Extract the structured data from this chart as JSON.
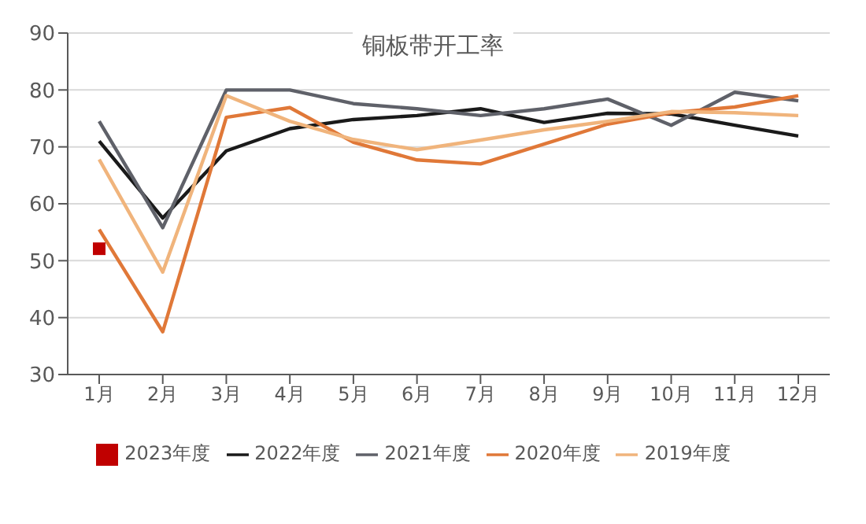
{
  "chart_data": {
    "type": "line",
    "title": "铜板带开工率",
    "categories": [
      "1月",
      "2月",
      "3月",
      "4月",
      "5月",
      "6月",
      "7月",
      "8月",
      "9月",
      "10月",
      "11月",
      "12月"
    ],
    "series": [
      {
        "name": "2023年度",
        "color": "#c00000",
        "marker": "square",
        "values": [
          52.1,
          null,
          null,
          null,
          null,
          null,
          null,
          null,
          null,
          null,
          null,
          null
        ]
      },
      {
        "name": "2022年度",
        "color": "#1a1a1a",
        "values": [
          71,
          57.5,
          69.3,
          73.2,
          74.8,
          75.5,
          76.7,
          74.3,
          75.9,
          75.8,
          73.8,
          71.9
        ]
      },
      {
        "name": "2021年度",
        "color": "#5f6169",
        "values": [
          74.5,
          55.8,
          80,
          80,
          77.6,
          76.7,
          75.5,
          76.7,
          78.4,
          73.8,
          79.6,
          78.1
        ]
      },
      {
        "name": "2020年度",
        "color": "#e07838",
        "values": [
          55.5,
          37.5,
          75.2,
          76.9,
          70.8,
          67.7,
          67,
          70.5,
          74,
          76,
          77,
          79
        ]
      },
      {
        "name": "2019年度",
        "color": "#f0b47c",
        "values": [
          67.8,
          48,
          79,
          74.5,
          71.3,
          69.5,
          71.2,
          73,
          74.5,
          76.2,
          76,
          75.5
        ]
      }
    ],
    "ylim": [
      30,
      90
    ],
    "yticks": [
      30,
      40,
      50,
      60,
      70,
      80,
      90
    ],
    "grid": "y",
    "legend": "bottom",
    "marker": "none"
  }
}
